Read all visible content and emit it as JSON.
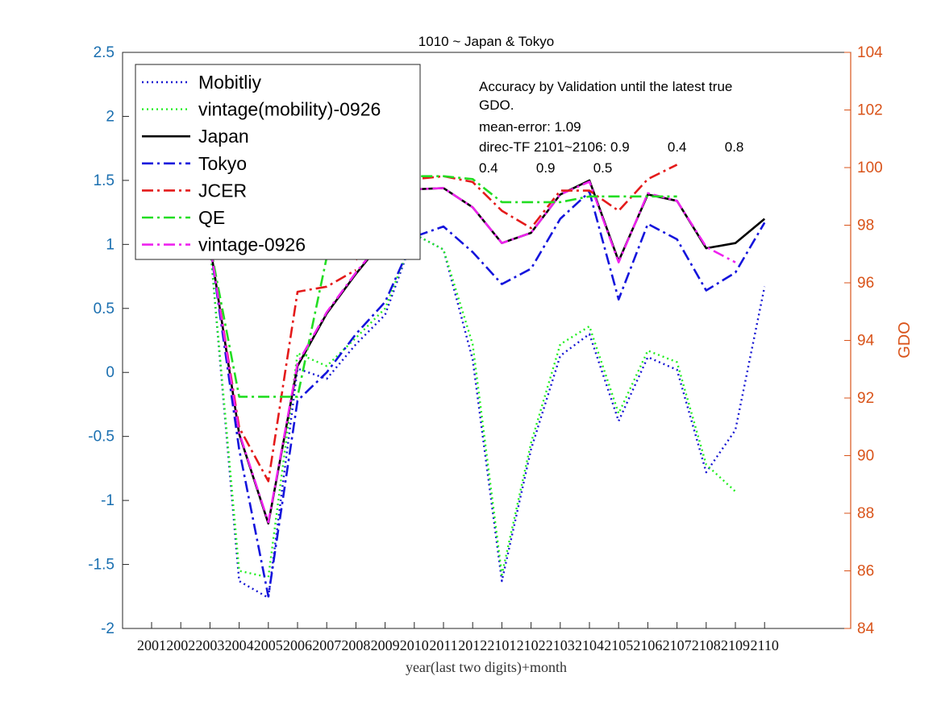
{
  "chart_data": {
    "type": "line",
    "title": "1010 ~ Japan & Tokyo",
    "xlabel": "year(last two digits)+month",
    "ylabel_left": "",
    "ylabel_right": "GDO",
    "ylim_left": [
      -2,
      2.5
    ],
    "ylim_right": [
      84,
      104
    ],
    "yticks_left": [
      "-2",
      "-1.5",
      "-1",
      "-0.5",
      "0",
      "0.5",
      "1",
      "1.5",
      "2",
      "2.5"
    ],
    "yticks_right": [
      "84",
      "86",
      "88",
      "90",
      "92",
      "94",
      "96",
      "98",
      "100",
      "102",
      "104"
    ],
    "categories": [
      "2001",
      "2002",
      "2003",
      "2004",
      "2005",
      "2006",
      "2007",
      "2008",
      "2009",
      "2010",
      "2011",
      "2012",
      "2101",
      "2102",
      "2103",
      "2104",
      "2105",
      "2106",
      "2107",
      "2108",
      "2109",
      "2110"
    ],
    "grid": false,
    "legend_position": "top-left",
    "left_axis_color": "#1a6fb0",
    "right_axis_color": "#d95319",
    "series": [
      {
        "name": "Mobitliy",
        "color": "#1414d2",
        "style": "dotted",
        "values": [
          null,
          null,
          1.0,
          -1.63,
          -1.76,
          0.03,
          -0.05,
          0.22,
          0.45,
          1.08,
          0.96,
          0.1,
          -1.63,
          -0.6,
          0.13,
          0.3,
          -0.38,
          0.12,
          0.02,
          -0.78,
          -0.45,
          0.67
        ]
      },
      {
        "name": "vintage(mobility)-0926",
        "color": "#22ee22",
        "style": "dotted",
        "values": [
          null,
          null,
          1.0,
          -1.55,
          -1.6,
          0.15,
          0.05,
          0.27,
          0.5,
          1.08,
          0.96,
          0.22,
          -1.58,
          -0.55,
          0.22,
          0.36,
          -0.32,
          0.17,
          0.08,
          -0.72,
          -0.93,
          null
        ]
      },
      {
        "name": "Japan",
        "color": "#000000",
        "style": "solid",
        "values": [
          null,
          null,
          1.0,
          -0.48,
          -1.18,
          0.05,
          0.46,
          0.77,
          1.05,
          1.43,
          1.44,
          1.29,
          1.01,
          1.09,
          1.39,
          1.5,
          0.87,
          1.39,
          1.34,
          0.97,
          1.01,
          1.2
        ]
      },
      {
        "name": "Tokyo",
        "color": "#1414dc",
        "style": "dashdot",
        "values": [
          null,
          null,
          1.0,
          -0.6,
          -1.75,
          -0.22,
          0.0,
          0.3,
          0.55,
          1.06,
          1.14,
          0.94,
          0.69,
          0.81,
          1.2,
          1.41,
          0.57,
          1.16,
          1.04,
          0.64,
          0.78,
          1.17
        ]
      },
      {
        "name": "JCER",
        "color": "#e41a1a",
        "style": "dashdot",
        "values": [
          null,
          null,
          1.0,
          -0.43,
          -0.85,
          0.63,
          0.67,
          0.8,
          null,
          null,
          null,
          null,
          null,
          null,
          null,
          null,
          null,
          null,
          null,
          null,
          null,
          null
        ]
      },
      {
        "name": "QE",
        "color": "#22dd22",
        "style": "dashdot",
        "values": [
          null,
          null,
          1.0,
          -0.19,
          -0.19,
          -0.19,
          0.9,
          null,
          null,
          null,
          null,
          null,
          null,
          null,
          null,
          null,
          null,
          null,
          null,
          null,
          null,
          null
        ]
      },
      {
        "name": "vintage-0926",
        "color": "#ee22ee",
        "style": "dashdot",
        "values": [
          null,
          null,
          1.0,
          -0.47,
          -1.17,
          0.07,
          0.47,
          0.78,
          1.06,
          1.43,
          1.44,
          1.29,
          1.01,
          1.09,
          1.39,
          1.49,
          0.86,
          1.4,
          1.34,
          0.98,
          0.86,
          null
        ]
      }
    ],
    "right_axis_series": [
      {
        "name": "JCER",
        "color": "#e41a1a",
        "style": "dashdot",
        "x": [
          "2008",
          "2009",
          "2010",
          "2011",
          "2012",
          "2101",
          "2102",
          "2103",
          "2104",
          "2105",
          "2106",
          "2107"
        ],
        "values": [
          96.8,
          97.8,
          99.6,
          99.7,
          99.5,
          98.5,
          97.9,
          99.2,
          99.2,
          98.5,
          99.6,
          100.1
        ]
      },
      {
        "name": "QE",
        "color": "#22dd22",
        "style": "dashdot",
        "x": [
          "2008",
          "2009",
          "2010",
          "2011",
          "2012",
          "2101",
          "2102",
          "2103",
          "2104",
          "2105",
          "2106",
          "2107"
        ],
        "values": [
          99.6,
          99.7,
          99.7,
          99.7,
          99.6,
          98.8,
          98.8,
          98.8,
          99.0,
          99.0,
          99.0,
          99.0
        ]
      }
    ],
    "annotation_lines": [
      "Accuracy by Validation until the latest true",
      "GDO.",
      "mean-error: 1.09",
      "direc-TF 2101~2106: 0.9          0.4          0.8",
      "0.4          0.9          0.5"
    ]
  }
}
